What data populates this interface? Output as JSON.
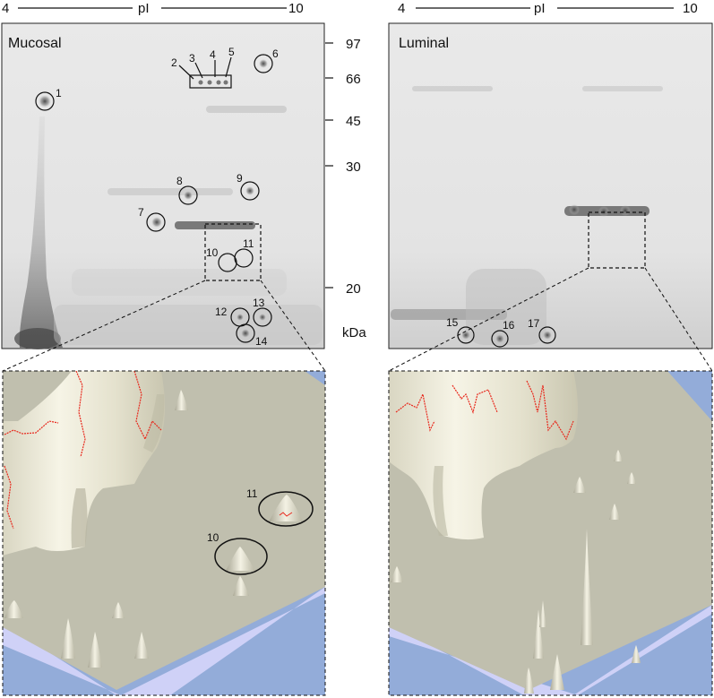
{
  "ph_axis": {
    "min_label": "4",
    "label": "pI",
    "max_label": "10"
  },
  "panels": {
    "mucosal": {
      "title": "Mucosal"
    },
    "luminal": {
      "title": "Luminal"
    }
  },
  "mass_axis": {
    "unit": "kDa",
    "ticks": [
      "97",
      "66",
      "45",
      "30",
      "20"
    ]
  },
  "spots": {
    "mucosal": [
      "1",
      "2",
      "3",
      "4",
      "5",
      "6",
      "7",
      "8",
      "9",
      "10",
      "11",
      "12",
      "13",
      "14"
    ],
    "luminal": [
      "15",
      "16",
      "17"
    ]
  },
  "zoom_spots": {
    "mucosal": [
      "11",
      "10"
    ]
  },
  "colors": {
    "gel_background": "#e6e6e6",
    "surface_floor": "#c0bfae",
    "surface_peak": "#f2f0df",
    "backdrop_blue": "#93acd9",
    "edge_lavender": "#cfd1f7",
    "contour_red": "#e8281c"
  }
}
